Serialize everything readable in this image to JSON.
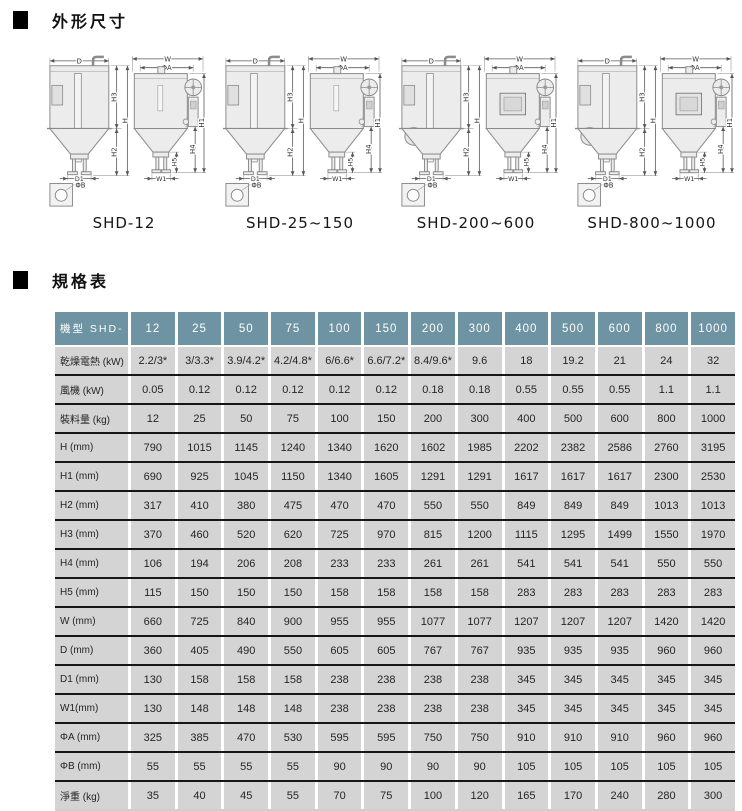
{
  "sections": {
    "dimensions": "外形尺寸",
    "spec": "規格表"
  },
  "dim_labels": {
    "D": "D",
    "W": "W",
    "phiA": "ΦA",
    "H": "H",
    "H1": "H1",
    "H2": "H2",
    "H3": "H3",
    "H4": "H4",
    "H5": "H5",
    "D1": "D1",
    "W1": "W1",
    "phiB": "ΦB"
  },
  "diagrams": [
    {
      "model": "SHD-12"
    },
    {
      "model": "SHD-25~150"
    },
    {
      "model": "SHD-200~600"
    },
    {
      "model": "SHD-800~1000"
    }
  ],
  "table": {
    "header_label": "機型  SHD-",
    "columns": [
      "12",
      "25",
      "50",
      "75",
      "100",
      "150",
      "200",
      "300",
      "400",
      "500",
      "600",
      "800",
      "1000"
    ],
    "rows": [
      {
        "label": "乾燥電熱 (kW)",
        "values": [
          "2.2/3*",
          "3/3.3*",
          "3.9/4.2*",
          "4.2/4.8*",
          "6/6.6*",
          "6.6/7.2*",
          "8.4/9.6*",
          "9.6",
          "18",
          "19.2",
          "21",
          "24",
          "32"
        ]
      },
      {
        "label": "風機 (kW)",
        "values": [
          "0.05",
          "0.12",
          "0.12",
          "0.12",
          "0.12",
          "0.12",
          "0.18",
          "0.18",
          "0.55",
          "0.55",
          "0.55",
          "1.1",
          "1.1"
        ]
      },
      {
        "label": "裝料量 (kg)",
        "values": [
          "12",
          "25",
          "50",
          "75",
          "100",
          "150",
          "200",
          "300",
          "400",
          "500",
          "600",
          "800",
          "1000"
        ]
      },
      {
        "label": "H (mm)",
        "values": [
          "790",
          "1015",
          "1145",
          "1240",
          "1340",
          "1620",
          "1602",
          "1985",
          "2202",
          "2382",
          "2586",
          "2760",
          "3195"
        ]
      },
      {
        "label": "H1 (mm)",
        "values": [
          "690",
          "925",
          "1045",
          "1150",
          "1340",
          "1605",
          "1291",
          "1291",
          "1617",
          "1617",
          "1617",
          "2300",
          "2530"
        ]
      },
      {
        "label": "H2 (mm)",
        "values": [
          "317",
          "410",
          "380",
          "475",
          "470",
          "470",
          "550",
          "550",
          "849",
          "849",
          "849",
          "1013",
          "1013"
        ]
      },
      {
        "label": "H3 (mm)",
        "values": [
          "370",
          "460",
          "520",
          "620",
          "725",
          "970",
          "815",
          "1200",
          "1115",
          "1295",
          "1499",
          "1550",
          "1970"
        ]
      },
      {
        "label": "H4 (mm)",
        "values": [
          "106",
          "194",
          "206",
          "208",
          "233",
          "233",
          "261",
          "261",
          "541",
          "541",
          "541",
          "550",
          "550"
        ]
      },
      {
        "label": "H5 (mm)",
        "values": [
          "115",
          "150",
          "150",
          "150",
          "158",
          "158",
          "158",
          "158",
          "283",
          "283",
          "283",
          "283",
          "283"
        ]
      },
      {
        "label": "W (mm)",
        "values": [
          "660",
          "725",
          "840",
          "900",
          "955",
          "955",
          "1077",
          "1077",
          "1207",
          "1207",
          "1207",
          "1420",
          "1420"
        ]
      },
      {
        "label": "D (mm)",
        "values": [
          "360",
          "405",
          "490",
          "550",
          "605",
          "605",
          "767",
          "767",
          "935",
          "935",
          "935",
          "960",
          "960"
        ]
      },
      {
        "label": "D1 (mm)",
        "values": [
          "130",
          "158",
          "158",
          "158",
          "238",
          "238",
          "238",
          "238",
          "345",
          "345",
          "345",
          "345",
          "345"
        ]
      },
      {
        "label": "W1(mm)",
        "values": [
          "130",
          "148",
          "148",
          "148",
          "238",
          "238",
          "238",
          "238",
          "345",
          "345",
          "345",
          "345",
          "345"
        ]
      },
      {
        "label": "ΦA (mm)",
        "values": [
          "325",
          "385",
          "470",
          "530",
          "595",
          "595",
          "750",
          "750",
          "910",
          "910",
          "910",
          "960",
          "960"
        ]
      },
      {
        "label": "ΦB (mm)",
        "values": [
          "55",
          "55",
          "55",
          "55",
          "90",
          "90",
          "90",
          "90",
          "105",
          "105",
          "105",
          "105",
          "105"
        ]
      },
      {
        "label": "淨重 (kg)",
        "values": [
          "35",
          "40",
          "45",
          "55",
          "70",
          "75",
          "100",
          "120",
          "165",
          "170",
          "240",
          "280",
          "300"
        ]
      }
    ],
    "colors": {
      "header_bg": "#6e93a3",
      "header_text": "#ffffff",
      "cell_bg": "#d4d4d4",
      "grid_line": "#161616"
    }
  }
}
